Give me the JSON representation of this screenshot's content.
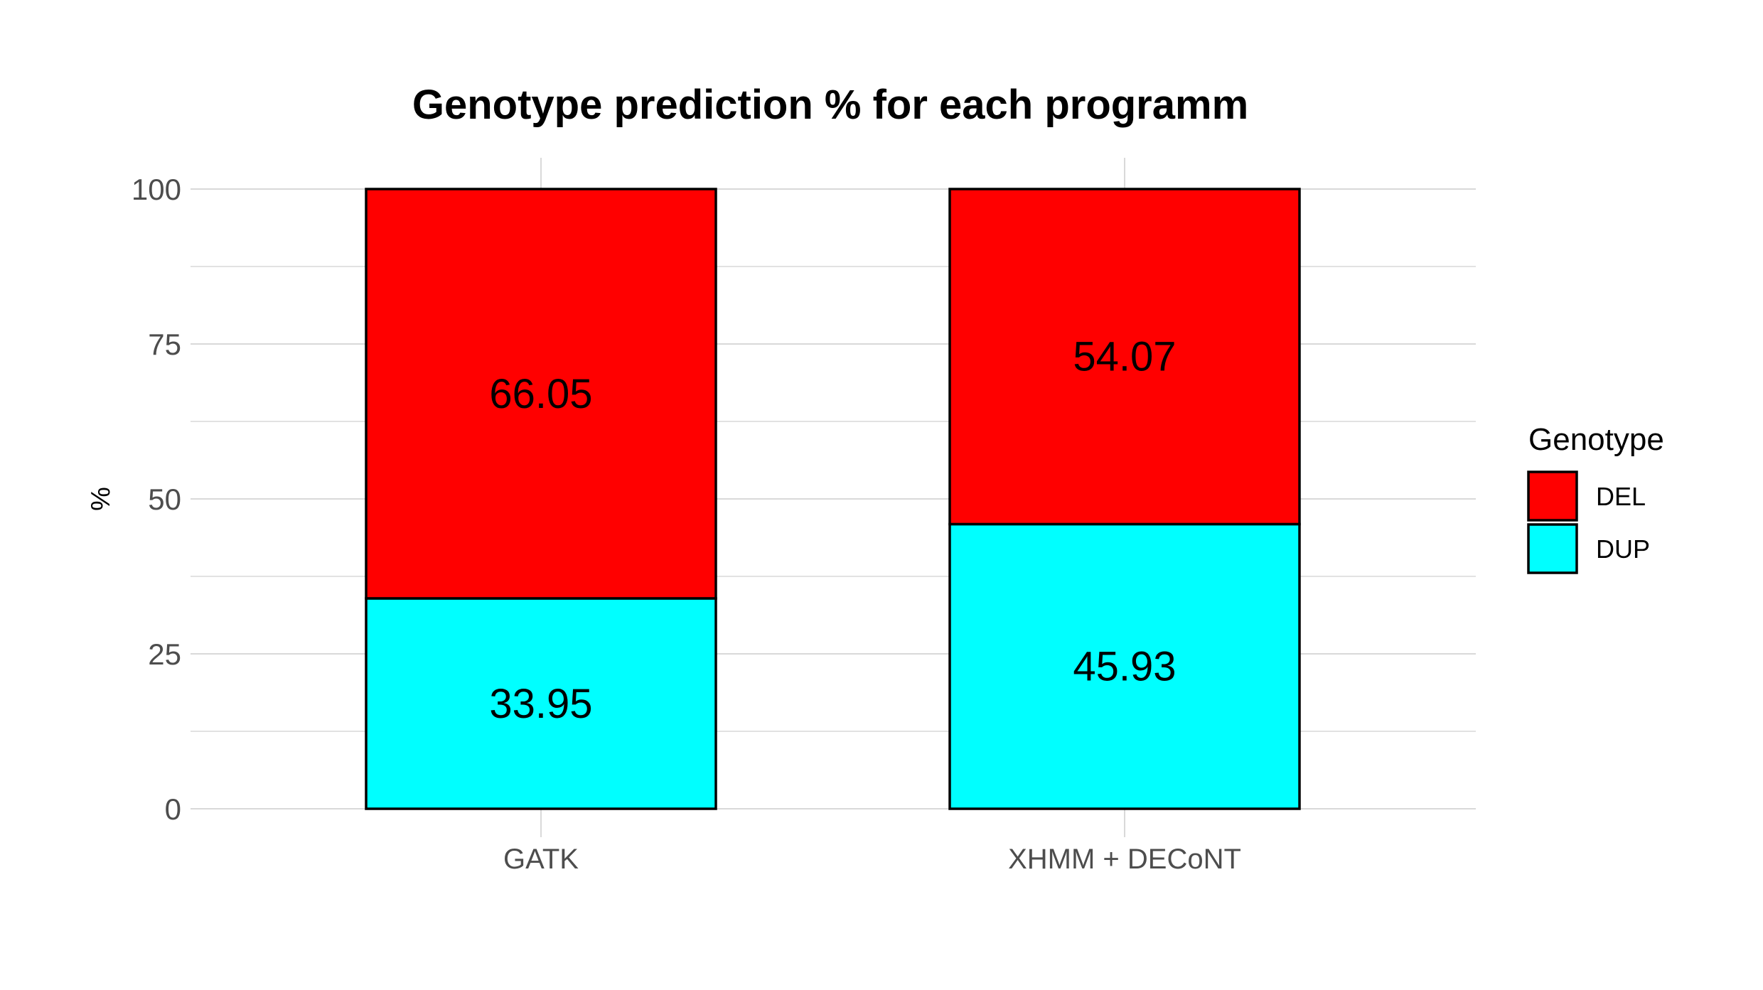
{
  "chart_data": {
    "type": "bar",
    "stacked": true,
    "title": "Genotype prediction % for each programm",
    "xlabel": "",
    "ylabel": "%",
    "categories": [
      "GATK",
      "XHMM + DECoNT"
    ],
    "series": [
      {
        "name": "DUP",
        "values": [
          33.95,
          45.93
        ],
        "color": "#00FFFF"
      },
      {
        "name": "DEL",
        "values": [
          66.05,
          54.07
        ],
        "color": "#FF0000"
      }
    ],
    "data_labels": {
      "DUP": [
        "33.95",
        "45.93"
      ],
      "DEL": [
        "66.05",
        "54.07"
      ]
    },
    "ylim": [
      0,
      100
    ],
    "yticks": [
      0,
      25,
      50,
      75,
      100
    ],
    "ytick_labels": [
      "0",
      "25",
      "50",
      "75",
      "100"
    ],
    "grid": true,
    "legend": {
      "title": "Genotype",
      "position": "right",
      "entries": [
        {
          "label": "DEL",
          "color": "#FF0000"
        },
        {
          "label": "DUP",
          "color": "#00FFFF"
        }
      ]
    }
  }
}
